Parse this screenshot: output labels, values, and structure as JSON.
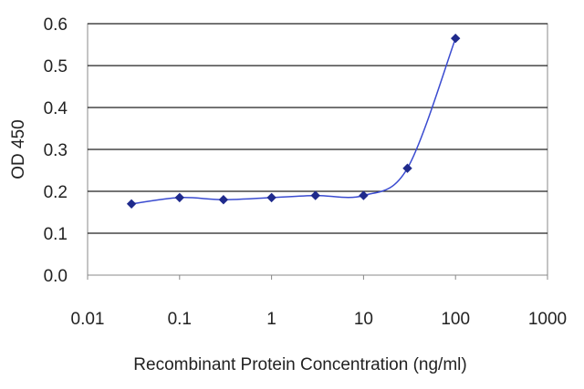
{
  "chart_data": {
    "type": "line",
    "title": "",
    "xlabel": "Recombinant Protein Concentration (ng/ml)",
    "ylabel": "OD 450",
    "x_scale": "log",
    "xlim": [
      0.01,
      1000
    ],
    "ylim": [
      0,
      0.6
    ],
    "x_ticks": [
      "0.01",
      "0.1",
      "1",
      "10",
      "100",
      "1000"
    ],
    "y_ticks": [
      "0.0",
      "0.1",
      "0.2",
      "0.3",
      "0.4",
      "0.5",
      "0.6"
    ],
    "grid": "horizontal",
    "legend": "none",
    "series": [
      {
        "color": "#1f2a8c",
        "marker": "diamond",
        "x": [
          0.03,
          0.1,
          0.3,
          1,
          3,
          10,
          30,
          100
        ],
        "y": [
          0.17,
          0.185,
          0.18,
          0.185,
          0.19,
          0.19,
          0.255,
          0.565
        ]
      }
    ]
  }
}
